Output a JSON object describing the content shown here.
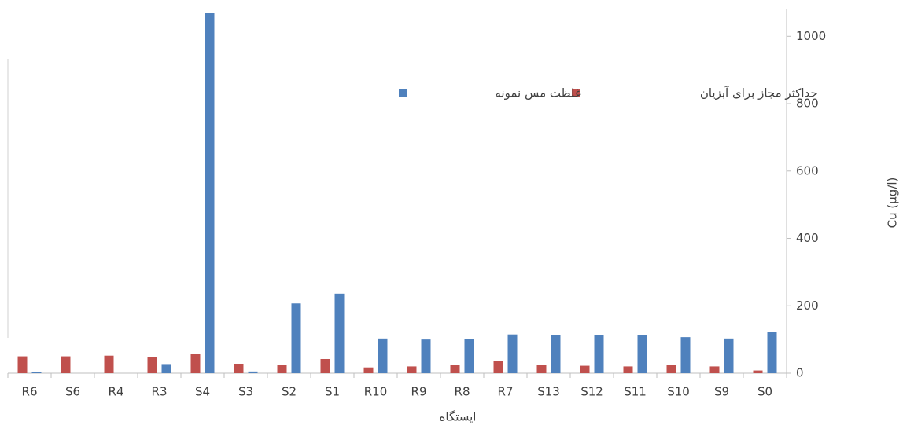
{
  "chart_data": {
    "type": "bar",
    "x_label": "ایستگاه",
    "y_label": "Cu (µg/l)",
    "categories": [
      "R6",
      "S6",
      "R4",
      "R3",
      "S4",
      "S3",
      "S2",
      "S1",
      "R10",
      "R9",
      "R8",
      "R7",
      "S13",
      "S12",
      "S11",
      "S10",
      "S9",
      "S0"
    ],
    "series": [
      {
        "name": "حداکثر مجاز برای آبزیان",
        "color": "#c0504d",
        "values": [
          50,
          50,
          52,
          48,
          58,
          28,
          24,
          42,
          17,
          20,
          24,
          35,
          25,
          22,
          20,
          25,
          20,
          8
        ]
      },
      {
        "name": "غلظت مس نمونه",
        "color": "#4f81bd",
        "values": [
          3,
          0,
          0,
          27,
          1070,
          5,
          207,
          236,
          103,
          100,
          101,
          115,
          112,
          112,
          113,
          107,
          103,
          122
        ]
      }
    ],
    "ylim": [
      0,
      1080
    ],
    "yticks": [
      0,
      200,
      400,
      600,
      800,
      1000
    ],
    "y_axis_side": "right",
    "grid": false
  }
}
